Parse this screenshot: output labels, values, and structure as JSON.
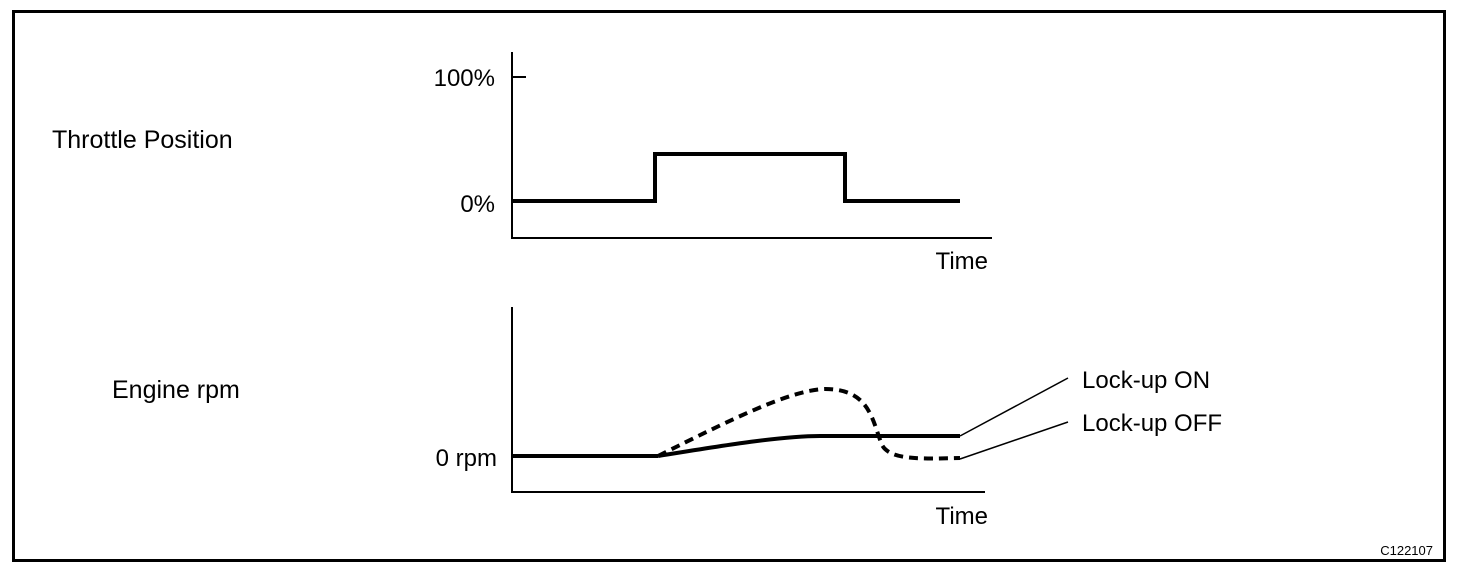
{
  "panels": {
    "throttle": {
      "row_label": "Throttle Position",
      "y_tick_top": "100%",
      "y_tick_bottom": "0%",
      "x_label": "Time"
    },
    "engine": {
      "row_label": "Engine rpm",
      "y_tick_bottom": "0 rpm",
      "x_label": "Time",
      "callout_on": "Lock-up ON",
      "callout_off": "Lock-up OFF"
    }
  },
  "figure_code": "C122107"
}
